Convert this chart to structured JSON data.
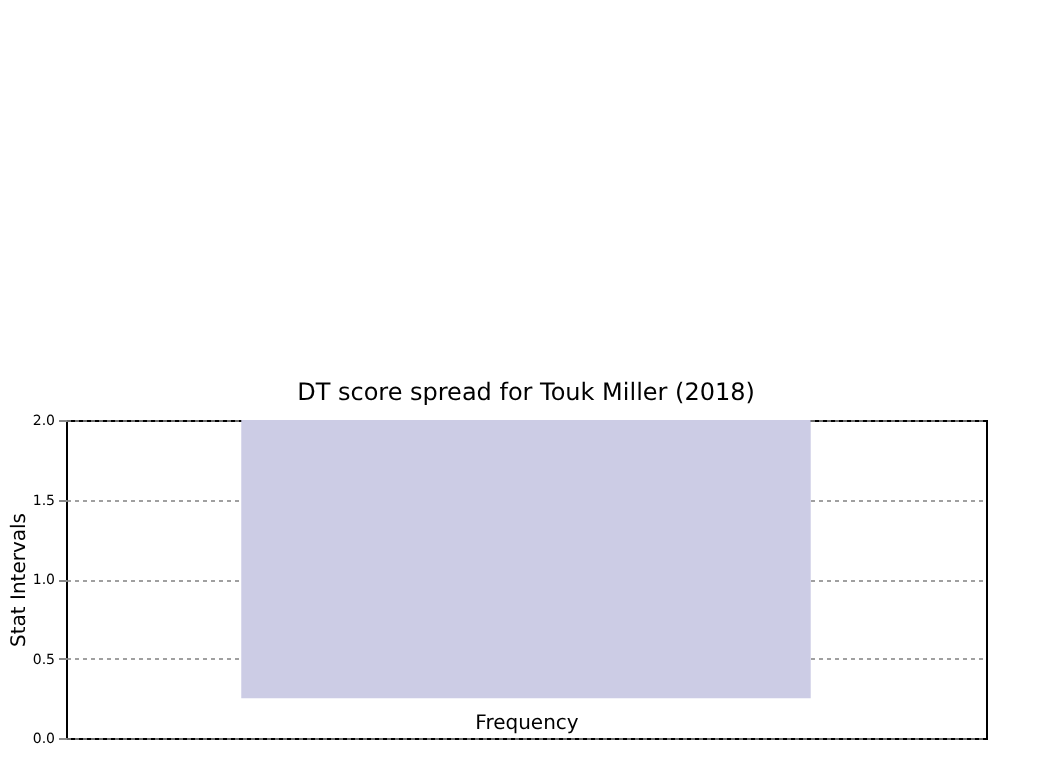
{
  "chart_data": {
    "type": "bar",
    "title": "DT score spread for Touk Miller (2018)",
    "xlabel": "Frequency",
    "ylabel": "Stat Intervals",
    "categories": [
      null
    ],
    "values": [
      1.75
    ],
    "base": [
      0.25
    ],
    "color": "#cccce5",
    "ylim": [
      0,
      2
    ],
    "yticks": [
      {
        "value": 0,
        "label": "0.0"
      },
      {
        "value": 0.5,
        "label": "0.5"
      },
      {
        "value": 1,
        "label": "1.0"
      },
      {
        "value": 1.5,
        "label": "1.5"
      },
      {
        "value": 2,
        "label": "2.0"
      }
    ],
    "grid": "y"
  }
}
